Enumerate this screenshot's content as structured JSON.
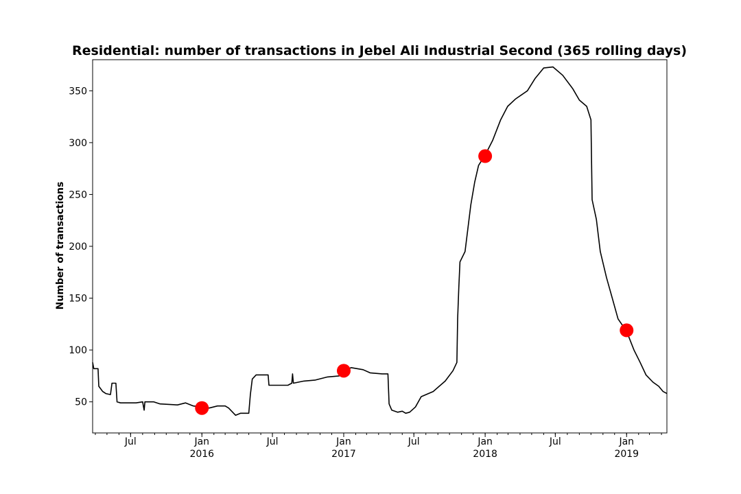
{
  "chart_data": {
    "type": "line",
    "title": "Residential: number of transactions in Jebel Ali Industrial Second (365 rolling days)",
    "xlabel": "",
    "ylabel": "Number of transactions",
    "xlim": [
      "2015-03-25",
      "2019-04-15"
    ],
    "ylim": [
      20,
      380
    ],
    "grid": false,
    "y_ticks": [
      50,
      100,
      150,
      200,
      250,
      300,
      350
    ],
    "x_ticks": [
      {
        "date": "2015-07-01",
        "label": "Jul",
        "year": ""
      },
      {
        "date": "2016-01-01",
        "label": "Jan",
        "year": "2016"
      },
      {
        "date": "2016-07-01",
        "label": "Jul",
        "year": ""
      },
      {
        "date": "2017-01-01",
        "label": "Jan",
        "year": "2017"
      },
      {
        "date": "2017-07-01",
        "label": "Jul",
        "year": ""
      },
      {
        "date": "2018-01-01",
        "label": "Jan",
        "year": "2018"
      },
      {
        "date": "2018-07-01",
        "label": "Jul",
        "year": ""
      },
      {
        "date": "2019-01-01",
        "label": "Jan",
        "year": "2019"
      }
    ],
    "series": [
      {
        "color": "#000000",
        "points": [
          [
            "2015-03-25",
            88
          ],
          [
            "2015-03-28",
            82
          ],
          [
            "2015-04-08",
            82
          ],
          [
            "2015-04-10",
            65
          ],
          [
            "2015-04-20",
            60
          ],
          [
            "2015-04-28",
            58
          ],
          [
            "2015-05-10",
            57
          ],
          [
            "2015-05-14",
            68
          ],
          [
            "2015-05-24",
            68
          ],
          [
            "2015-05-27",
            50
          ],
          [
            "2015-06-05",
            49
          ],
          [
            "2015-07-15",
            49
          ],
          [
            "2015-08-01",
            50
          ],
          [
            "2015-08-05",
            42
          ],
          [
            "2015-08-07",
            50
          ],
          [
            "2015-08-30",
            50
          ],
          [
            "2015-09-15",
            48
          ],
          [
            "2015-10-30",
            47
          ],
          [
            "2015-11-20",
            49
          ],
          [
            "2015-12-10",
            46
          ],
          [
            "2016-01-01",
            45
          ],
          [
            "2016-01-20",
            44
          ],
          [
            "2016-02-10",
            46
          ],
          [
            "2016-03-01",
            46
          ],
          [
            "2016-03-10",
            44
          ],
          [
            "2016-03-28",
            37
          ],
          [
            "2016-04-10",
            39
          ],
          [
            "2016-05-01",
            39
          ],
          [
            "2016-05-05",
            57
          ],
          [
            "2016-05-10",
            72
          ],
          [
            "2016-05-20",
            76
          ],
          [
            "2016-06-20",
            76
          ],
          [
            "2016-06-22",
            66
          ],
          [
            "2016-07-20",
            66
          ],
          [
            "2016-08-10",
            66
          ],
          [
            "2016-08-20",
            68
          ],
          [
            "2016-08-22",
            77
          ],
          [
            "2016-08-24",
            68
          ],
          [
            "2016-09-20",
            70
          ],
          [
            "2016-10-20",
            71
          ],
          [
            "2016-11-20",
            74
          ],
          [
            "2016-12-20",
            75
          ],
          [
            "2017-01-01",
            79
          ],
          [
            "2017-01-20",
            83
          ],
          [
            "2017-02-20",
            81
          ],
          [
            "2017-03-10",
            78
          ],
          [
            "2017-04-10",
            77
          ],
          [
            "2017-04-25",
            77
          ],
          [
            "2017-04-28",
            48
          ],
          [
            "2017-05-05",
            42
          ],
          [
            "2017-05-20",
            40
          ],
          [
            "2017-06-01",
            41
          ],
          [
            "2017-06-10",
            39
          ],
          [
            "2017-06-20",
            40
          ],
          [
            "2017-07-05",
            45
          ],
          [
            "2017-07-20",
            55
          ],
          [
            "2017-08-20",
            60
          ],
          [
            "2017-09-20",
            70
          ],
          [
            "2017-10-10",
            80
          ],
          [
            "2017-10-20",
            88
          ],
          [
            "2017-10-22",
            130
          ],
          [
            "2017-10-25",
            160
          ],
          [
            "2017-10-28",
            185
          ],
          [
            "2017-11-10",
            195
          ],
          [
            "2017-11-25",
            240
          ],
          [
            "2017-12-05",
            262
          ],
          [
            "2017-12-15",
            278
          ],
          [
            "2018-01-01",
            288
          ],
          [
            "2018-01-20",
            302
          ],
          [
            "2018-02-10",
            322
          ],
          [
            "2018-02-28",
            335
          ],
          [
            "2018-03-20",
            342
          ],
          [
            "2018-04-20",
            350
          ],
          [
            "2018-05-10",
            362
          ],
          [
            "2018-06-01",
            372
          ],
          [
            "2018-06-25",
            373
          ],
          [
            "2018-07-20",
            365
          ],
          [
            "2018-08-15",
            352
          ],
          [
            "2018-09-01",
            341
          ],
          [
            "2018-09-20",
            335
          ],
          [
            "2018-10-01",
            322
          ],
          [
            "2018-10-04",
            245
          ],
          [
            "2018-10-15",
            226
          ],
          [
            "2018-10-25",
            195
          ],
          [
            "2018-11-10",
            170
          ],
          [
            "2018-11-25",
            150
          ],
          [
            "2018-12-10",
            130
          ],
          [
            "2019-01-01",
            118
          ],
          [
            "2019-01-20",
            100
          ],
          [
            "2019-02-05",
            88
          ],
          [
            "2019-02-20",
            76
          ],
          [
            "2019-03-10",
            69
          ],
          [
            "2019-03-25",
            65
          ],
          [
            "2019-04-05",
            60
          ],
          [
            "2019-04-15",
            58
          ]
        ]
      }
    ],
    "markers": {
      "color": "#ff0000",
      "points": [
        [
          "2016-01-01",
          44
        ],
        [
          "2017-01-01",
          80
        ],
        [
          "2018-01-01",
          287
        ],
        [
          "2019-01-01",
          119
        ]
      ]
    }
  }
}
